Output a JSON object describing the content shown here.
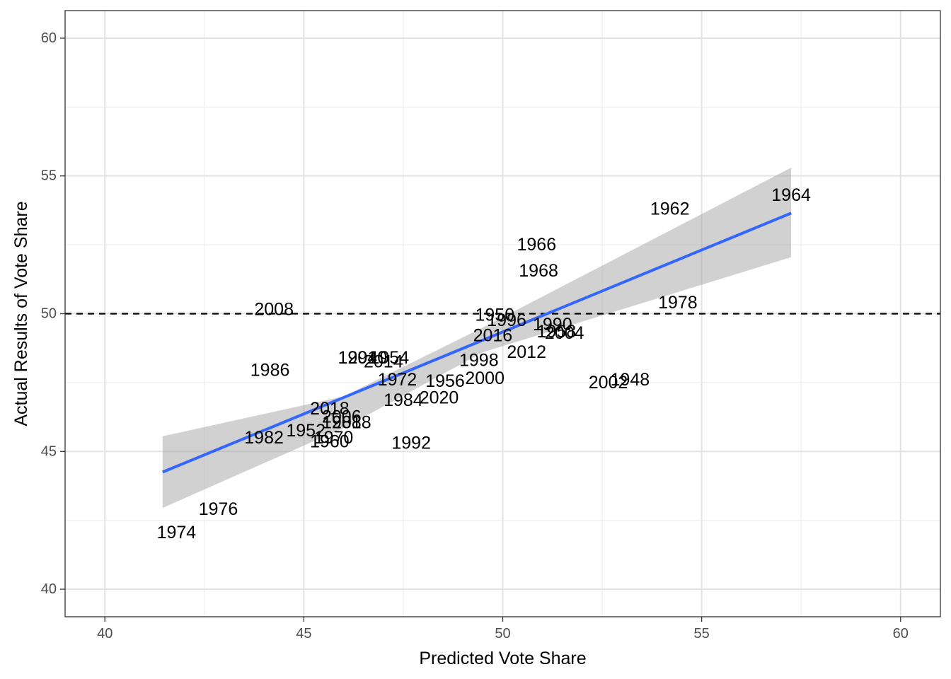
{
  "chart_data": {
    "type": "scatter",
    "title": "",
    "xlabel": "Predicted Vote Share",
    "ylabel": "Actual Results of Vote Share",
    "xlim": [
      39,
      61
    ],
    "ylim": [
      39,
      61
    ],
    "xticks": [
      "40",
      "45",
      "50",
      "55",
      "60"
    ],
    "yticks": [
      "40",
      "45",
      "50",
      "55",
      "60"
    ],
    "grid": true,
    "reference_line": {
      "y": 50,
      "style": "dashed",
      "color": "#000000"
    },
    "fit": {
      "method": "linear",
      "color": "#3366ff",
      "band_color": "#999999",
      "x_range": [
        41.45,
        57.25
      ],
      "line": [
        [
          41.45,
          44.25
        ],
        [
          57.25,
          53.65
        ]
      ],
      "band_upper": [
        [
          41.45,
          45.55
        ],
        [
          46.0,
          47.0
        ],
        [
          49.5,
          49.5
        ],
        [
          57.25,
          55.3
        ]
      ],
      "band_lower": [
        [
          41.45,
          42.95
        ],
        [
          46.0,
          45.85
        ],
        [
          49.5,
          48.6
        ],
        [
          57.25,
          52.05
        ]
      ]
    },
    "points": [
      {
        "label": "1964",
        "x": 57.25,
        "y": 54.3
      },
      {
        "label": "1962",
        "x": 54.2,
        "y": 53.8
      },
      {
        "label": "1966",
        "x": 50.85,
        "y": 52.5
      },
      {
        "label": "1968",
        "x": 50.9,
        "y": 51.55
      },
      {
        "label": "1978",
        "x": 54.4,
        "y": 50.4
      },
      {
        "label": "2008",
        "x": 44.25,
        "y": 50.15
      },
      {
        "label": "1950",
        "x": 49.8,
        "y": 49.95
      },
      {
        "label": "1996",
        "x": 50.1,
        "y": 49.75
      },
      {
        "label": "1990",
        "x": 51.25,
        "y": 49.6
      },
      {
        "label": "1958",
        "x": 51.35,
        "y": 49.35
      },
      {
        "label": "2004",
        "x": 51.55,
        "y": 49.3
      },
      {
        "label": "2016",
        "x": 49.75,
        "y": 49.2
      },
      {
        "label": "2012",
        "x": 50.6,
        "y": 48.6
      },
      {
        "label": "1994",
        "x": 46.35,
        "y": 48.4
      },
      {
        "label": "2010",
        "x": 46.6,
        "y": 48.4
      },
      {
        "label": "1954",
        "x": 47.15,
        "y": 48.4
      },
      {
        "label": "2014",
        "x": 47.0,
        "y": 48.25
      },
      {
        "label": "1998",
        "x": 49.4,
        "y": 48.3
      },
      {
        "label": "1986",
        "x": 44.15,
        "y": 47.95
      },
      {
        "label": "1972",
        "x": 47.35,
        "y": 47.6
      },
      {
        "label": "1956",
        "x": 48.55,
        "y": 47.55
      },
      {
        "label": "2000",
        "x": 49.55,
        "y": 47.65
      },
      {
        "label": "2002",
        "x": 52.65,
        "y": 47.5
      },
      {
        "label": "1948",
        "x": 53.2,
        "y": 47.6
      },
      {
        "label": "1984",
        "x": 47.5,
        "y": 46.85
      },
      {
        "label": "2020",
        "x": 48.4,
        "y": 46.95
      },
      {
        "label": "2018",
        "x": 45.65,
        "y": 46.55
      },
      {
        "label": "2006",
        "x": 45.95,
        "y": 46.25
      },
      {
        "label": "1988",
        "x": 45.95,
        "y": 46.05
      },
      {
        "label": "2018",
        "x": 46.2,
        "y": 46.05
      },
      {
        "label": "1952",
        "x": 45.05,
        "y": 45.75
      },
      {
        "label": "1982",
        "x": 44.0,
        "y": 45.5
      },
      {
        "label": "1970",
        "x": 45.75,
        "y": 45.5
      },
      {
        "label": "1960",
        "x": 45.65,
        "y": 45.35
      },
      {
        "label": "1992",
        "x": 47.7,
        "y": 45.3
      },
      {
        "label": "1976",
        "x": 42.85,
        "y": 42.9
      },
      {
        "label": "1974",
        "x": 41.8,
        "y": 42.05
      }
    ]
  }
}
